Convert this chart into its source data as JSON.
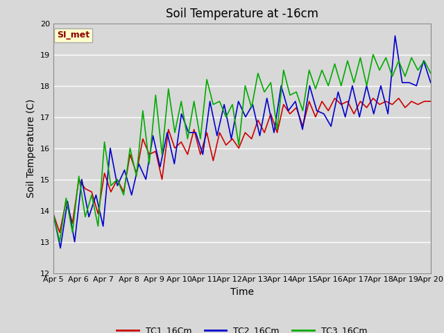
{
  "title": "Soil Temperature at -16cm",
  "xlabel": "Time",
  "ylabel": "Soil Temperature (C)",
  "ylim": [
    12.0,
    20.0
  ],
  "yticks": [
    12.0,
    13.0,
    14.0,
    15.0,
    16.0,
    17.0,
    18.0,
    19.0,
    20.0
  ],
  "background_color": "#d8d8d8",
  "plot_bg_color": "#d8d8d8",
  "annotation_text": "SI_met",
  "annotation_color": "#8b0000",
  "annotation_bg": "#ffffcc",
  "x_labels": [
    "Apr 5",
    "Apr 6",
    "Apr 7",
    "Apr 8",
    "Apr 9",
    "Apr 10",
    "Apr 11",
    "Apr 12",
    "Apr 13",
    "Apr 14",
    "Apr 15",
    "Apr 16",
    "Apr 17",
    "Apr 18",
    "Apr 19",
    "Apr 20"
  ],
  "TC1_color": "#cc0000",
  "TC2_color": "#0000cc",
  "TC3_color": "#00aa00",
  "TC1_label": "TC1_16Cm",
  "TC2_label": "TC2_16Cm",
  "TC3_label": "TC3_16Cm",
  "TC1_data": [
    13.9,
    13.3,
    14.3,
    13.6,
    15.0,
    14.7,
    14.6,
    13.9,
    15.2,
    14.6,
    15.0,
    14.6,
    15.8,
    15.2,
    16.3,
    15.8,
    15.9,
    15.0,
    16.6,
    16.0,
    16.2,
    15.8,
    16.6,
    15.8,
    16.5,
    15.6,
    16.5,
    16.1,
    16.3,
    16.0,
    16.5,
    16.3,
    16.9,
    16.5,
    17.1,
    16.5,
    17.4,
    17.1,
    17.3,
    16.7,
    17.5,
    17.0,
    17.5,
    17.2,
    17.6,
    17.4,
    17.5,
    17.1,
    17.5,
    17.3,
    17.6,
    17.4,
    17.5,
    17.4,
    17.6,
    17.3,
    17.5,
    17.4,
    17.5,
    17.5
  ],
  "TC2_data": [
    13.9,
    12.8,
    14.3,
    13.0,
    15.0,
    13.8,
    14.5,
    13.5,
    16.0,
    14.8,
    15.3,
    14.5,
    15.5,
    15.0,
    16.4,
    15.4,
    16.5,
    15.5,
    17.1,
    16.5,
    16.5,
    15.8,
    17.5,
    16.4,
    17.4,
    16.3,
    17.5,
    17.0,
    17.4,
    16.4,
    17.6,
    16.5,
    18.0,
    17.2,
    17.5,
    16.6,
    18.0,
    17.2,
    17.1,
    16.7,
    17.8,
    17.0,
    18.0,
    17.0,
    18.0,
    17.1,
    18.0,
    17.1,
    19.6,
    18.1,
    18.1,
    18.0,
    18.8,
    18.1
  ],
  "TC3_data": [
    13.9,
    13.0,
    14.4,
    13.3,
    15.1,
    13.8,
    14.5,
    13.5,
    16.2,
    14.8,
    15.0,
    14.5,
    16.0,
    15.1,
    17.2,
    15.5,
    17.7,
    15.8,
    17.9,
    16.5,
    17.5,
    16.3,
    17.5,
    16.3,
    18.2,
    17.4,
    17.5,
    17.0,
    17.4,
    16.1,
    18.0,
    17.3,
    18.4,
    17.8,
    18.1,
    16.6,
    18.5,
    17.7,
    17.8,
    17.2,
    18.5,
    17.9,
    18.5,
    18.0,
    18.7,
    18.0,
    18.8,
    18.1,
    18.9,
    18.0,
    19.0,
    18.5,
    18.9,
    18.3,
    18.8,
    18.3,
    18.9,
    18.5,
    18.8,
    18.4
  ],
  "title_fontsize": 12,
  "axis_fontsize": 10,
  "tick_fontsize": 8
}
